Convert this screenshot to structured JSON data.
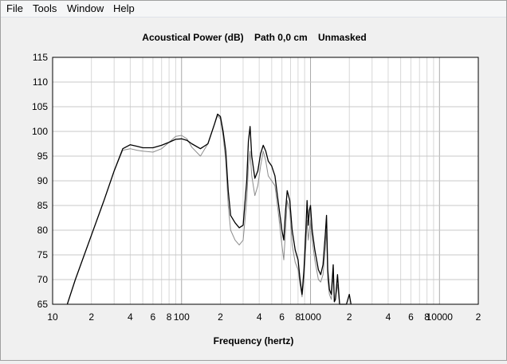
{
  "menu": {
    "file": "File",
    "tools": "Tools",
    "window": "Window",
    "help": "Help"
  },
  "chart_data": {
    "type": "line",
    "title": "Acoustical Power (dB)    Path 0,0 cm    Unmasked",
    "xlabel": "Frequency (hertz)",
    "ylabel": "",
    "xscale": "log",
    "xlim": [
      10,
      20000
    ],
    "ylim": [
      65,
      115
    ],
    "grid": true,
    "y_ticks": [
      65,
      70,
      75,
      80,
      85,
      90,
      95,
      100,
      105,
      110,
      115
    ],
    "x_tick_labels": [
      {
        "f": 10,
        "label": "10"
      },
      {
        "f": 20,
        "label": "2"
      },
      {
        "f": 40,
        "label": "4"
      },
      {
        "f": 60,
        "label": "6"
      },
      {
        "f": 80,
        "label": "8"
      },
      {
        "f": 100,
        "label": "100"
      },
      {
        "f": 200,
        "label": "2"
      },
      {
        "f": 400,
        "label": "4"
      },
      {
        "f": 600,
        "label": "6"
      },
      {
        "f": 800,
        "label": "8"
      },
      {
        "f": 1000,
        "label": "1000"
      },
      {
        "f": 2000,
        "label": "2"
      },
      {
        "f": 4000,
        "label": "4"
      },
      {
        "f": 6000,
        "label": "6"
      },
      {
        "f": 8000,
        "label": "8"
      },
      {
        "f": 10000,
        "label": "10000"
      },
      {
        "f": 20000,
        "label": "2"
      }
    ],
    "series": [
      {
        "color": "#000000",
        "points": [
          [
            13,
            65
          ],
          [
            15,
            70
          ],
          [
            20,
            79
          ],
          [
            25,
            86
          ],
          [
            30,
            92
          ],
          [
            35,
            96.5
          ],
          [
            40,
            97.3
          ],
          [
            45,
            97
          ],
          [
            50,
            96.7
          ],
          [
            60,
            96.7
          ],
          [
            70,
            97.2
          ],
          [
            80,
            97.8
          ],
          [
            90,
            98.4
          ],
          [
            100,
            98.5
          ],
          [
            110,
            98.2
          ],
          [
            120,
            97.5
          ],
          [
            140,
            96.5
          ],
          [
            160,
            97.5
          ],
          [
            180,
            101.5
          ],
          [
            190,
            103.5
          ],
          [
            200,
            103
          ],
          [
            210,
            100
          ],
          [
            220,
            96
          ],
          [
            230,
            88
          ],
          [
            240,
            83
          ],
          [
            260,
            81.5
          ],
          [
            280,
            80.5
          ],
          [
            300,
            81
          ],
          [
            320,
            90
          ],
          [
            330,
            98
          ],
          [
            340,
            101
          ],
          [
            350,
            95
          ],
          [
            370,
            90.5
          ],
          [
            390,
            92
          ],
          [
            410,
            95.5
          ],
          [
            430,
            97.2
          ],
          [
            450,
            96
          ],
          [
            470,
            94
          ],
          [
            500,
            93
          ],
          [
            530,
            91
          ],
          [
            560,
            86
          ],
          [
            600,
            80
          ],
          [
            620,
            78
          ],
          [
            640,
            84
          ],
          [
            660,
            88
          ],
          [
            690,
            86
          ],
          [
            720,
            80
          ],
          [
            760,
            76
          ],
          [
            800,
            74
          ],
          [
            830,
            70
          ],
          [
            860,
            67
          ],
          [
            890,
            72
          ],
          [
            920,
            80
          ],
          [
            940,
            86
          ],
          [
            960,
            81
          ],
          [
            980,
            84
          ],
          [
            1000,
            85
          ],
          [
            1030,
            80
          ],
          [
            1080,
            76
          ],
          [
            1150,
            72
          ],
          [
            1200,
            71
          ],
          [
            1250,
            73
          ],
          [
            1300,
            79
          ],
          [
            1330,
            83
          ],
          [
            1360,
            72
          ],
          [
            1400,
            68
          ],
          [
            1450,
            67
          ],
          [
            1500,
            73
          ],
          [
            1530,
            65.5
          ],
          [
            1560,
            66
          ],
          [
            1620,
            71
          ],
          [
            1680,
            65
          ],
          [
            1750,
            65
          ],
          [
            1900,
            65
          ],
          [
            2000,
            67
          ],
          [
            2060,
            65
          ]
        ]
      },
      {
        "color": "#8c8c8c",
        "points": [
          [
            13,
            65
          ],
          [
            15,
            70
          ],
          [
            20,
            79
          ],
          [
            25,
            86
          ],
          [
            30,
            92
          ],
          [
            35,
            96.2
          ],
          [
            40,
            96.5
          ],
          [
            45,
            96.2
          ],
          [
            50,
            96
          ],
          [
            60,
            95.8
          ],
          [
            70,
            96.5
          ],
          [
            80,
            97.8
          ],
          [
            90,
            99
          ],
          [
            100,
            99.2
          ],
          [
            110,
            98.5
          ],
          [
            120,
            96.8
          ],
          [
            140,
            95
          ],
          [
            160,
            97.5
          ],
          [
            180,
            101.5
          ],
          [
            190,
            103.2
          ],
          [
            200,
            102.5
          ],
          [
            210,
            99
          ],
          [
            220,
            94
          ],
          [
            230,
            85
          ],
          [
            240,
            80
          ],
          [
            260,
            78
          ],
          [
            280,
            77
          ],
          [
            300,
            78
          ],
          [
            320,
            86
          ],
          [
            330,
            93
          ],
          [
            340,
            96
          ],
          [
            350,
            91
          ],
          [
            370,
            87
          ],
          [
            390,
            89
          ],
          [
            410,
            93
          ],
          [
            430,
            96
          ],
          [
            450,
            94
          ],
          [
            470,
            91
          ],
          [
            500,
            90
          ],
          [
            530,
            89
          ],
          [
            560,
            84
          ],
          [
            600,
            77
          ],
          [
            620,
            74
          ],
          [
            640,
            80
          ],
          [
            660,
            86
          ],
          [
            690,
            84
          ],
          [
            720,
            77
          ],
          [
            760,
            73.5
          ],
          [
            800,
            72
          ],
          [
            830,
            69
          ],
          [
            860,
            66.5
          ],
          [
            890,
            70
          ],
          [
            920,
            77
          ],
          [
            940,
            82
          ],
          [
            960,
            78
          ],
          [
            980,
            80
          ],
          [
            1000,
            82
          ],
          [
            1030,
            78
          ],
          [
            1080,
            74
          ],
          [
            1150,
            70
          ],
          [
            1200,
            69.5
          ],
          [
            1250,
            71
          ],
          [
            1300,
            76
          ],
          [
            1330,
            80
          ],
          [
            1360,
            70
          ],
          [
            1400,
            67
          ],
          [
            1450,
            66
          ],
          [
            1500,
            71
          ],
          [
            1530,
            65.5
          ],
          [
            1560,
            66
          ],
          [
            1620,
            69
          ],
          [
            1680,
            65
          ],
          [
            1750,
            65
          ],
          [
            2000,
            65
          ]
        ]
      }
    ]
  }
}
